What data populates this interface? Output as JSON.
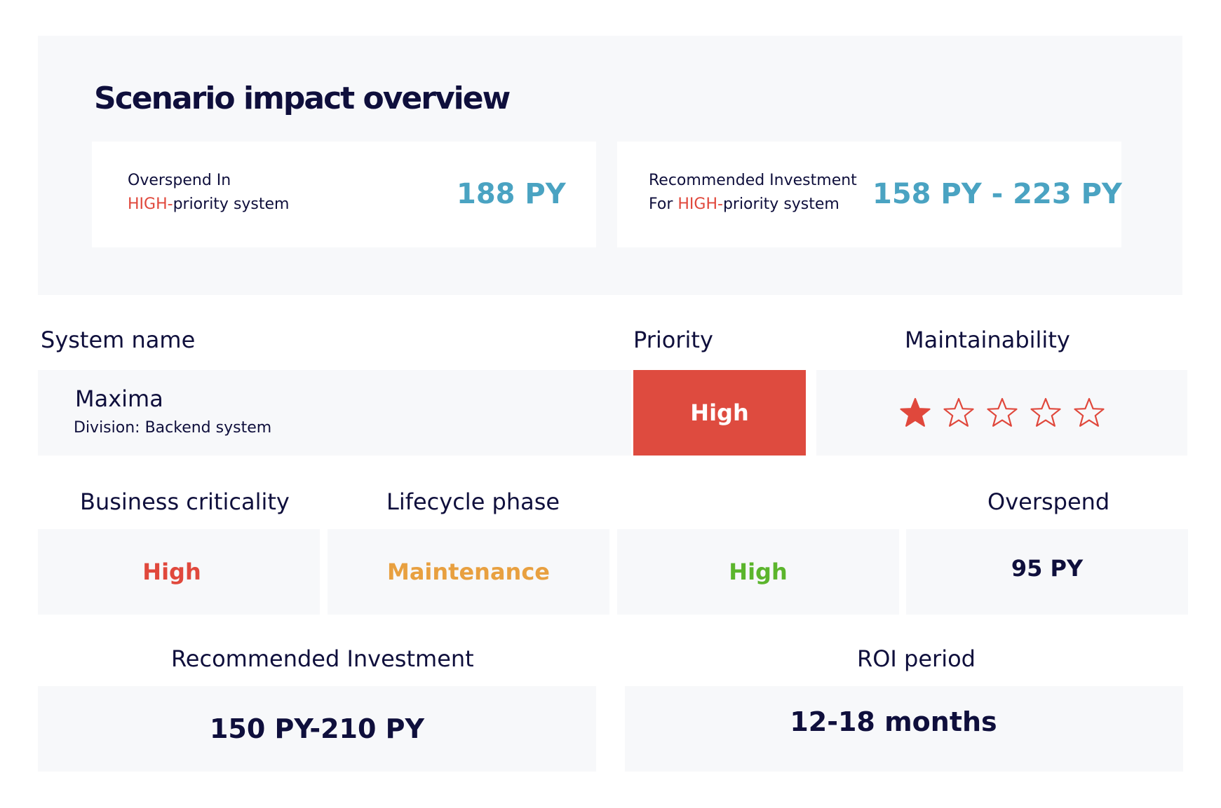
{
  "overview": {
    "title": "Scenario impact overview",
    "overspend_card": {
      "line1": "Overspend In",
      "high": "HIGH-",
      "line2_rest": "priority system",
      "value": "188 PY"
    },
    "investment_card": {
      "line1": "Recommended Investment",
      "line2_prefix": "For ",
      "high": "HIGH-",
      "line2_rest": "priority system",
      "value": "158 PY - 223 PY"
    }
  },
  "headers": {
    "system_name": "System name",
    "priority": "Priority",
    "maintainability": "Maintainability",
    "business_criticality": "Business criticality",
    "lifecycle_phase": "Lifecycle phase",
    "overspend": "Overspend",
    "recommended_investment": "Recommended Investment",
    "roi_period": "ROI period"
  },
  "system": {
    "name": "Maxima",
    "division": "Division: Backend system",
    "priority": "High",
    "maintainability_rating": 1,
    "maintainability_max": 5
  },
  "metrics": {
    "business_criticality": "High",
    "lifecycle_phase": "Maintenance",
    "third_value": "High",
    "overspend": "95 PY",
    "recommended_investment": "150 PY-210 PY",
    "roi_period": "12-18 months"
  },
  "colors": {
    "accent_blue": "#4aa3c2",
    "high_red": "#e0483c",
    "priority_bg": "#de4b3f",
    "maintenance_orange": "#e8a040",
    "green": "#5bb52c",
    "navy": "#0f0f3c"
  },
  "icons": {
    "star_filled": "star-filled-icon",
    "star_empty": "star-outline-icon"
  }
}
